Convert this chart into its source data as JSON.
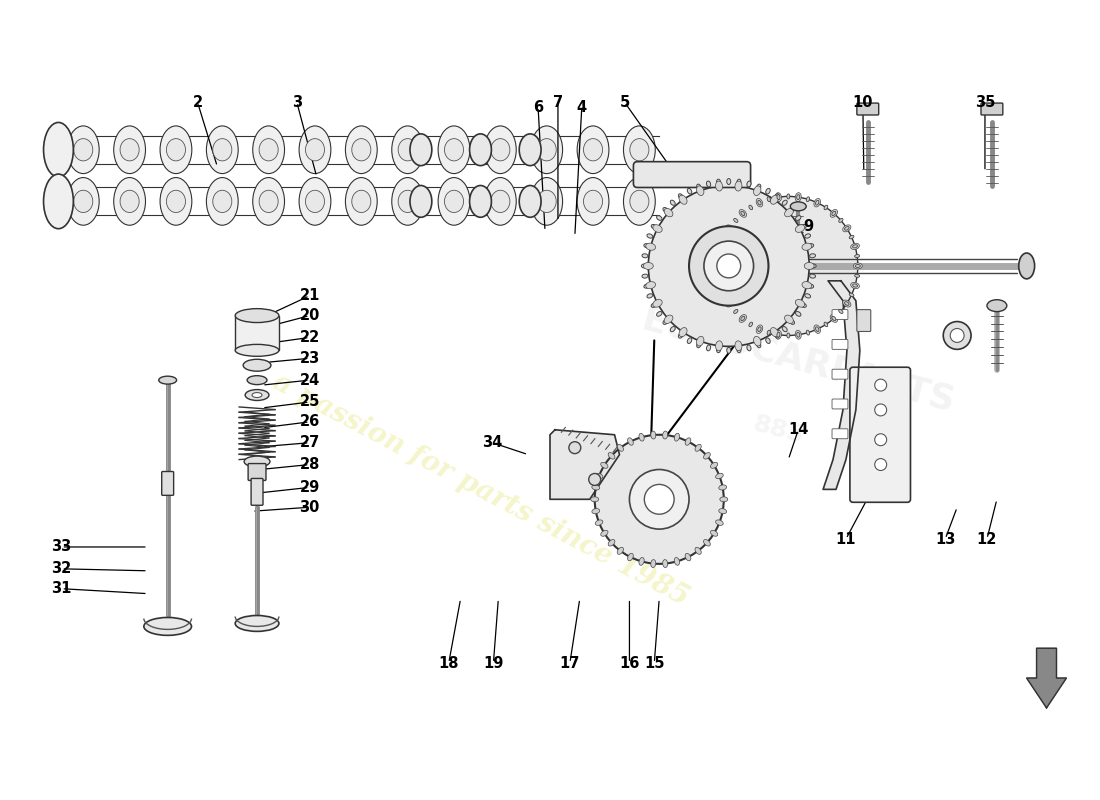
{
  "bg_color": "#ffffff",
  "watermark_text": "a passion for parts since 1985",
  "watermark_color": "#f5f5cc",
  "line_color": "#000000",
  "label_fontsize": 10.5,
  "label_fontweight": "bold",
  "arrow_color": "#000000",
  "label_positions": {
    "2": [
      195,
      715,
      210,
      650
    ],
    "3": [
      295,
      715,
      310,
      645
    ],
    "4": [
      582,
      715,
      570,
      645
    ],
    "5": [
      625,
      715,
      615,
      640
    ],
    "6a": [
      538,
      715,
      540,
      620
    ],
    "6b": [
      425,
      430,
      450,
      470
    ],
    "7": [
      558,
      715,
      555,
      628
    ],
    "9": [
      810,
      530,
      798,
      470
    ],
    "10": [
      870,
      715,
      862,
      680
    ],
    "11": [
      848,
      270,
      840,
      295
    ],
    "12": [
      990,
      270,
      1000,
      300
    ],
    "13": [
      948,
      270,
      960,
      300
    ],
    "14": [
      800,
      380,
      788,
      400
    ],
    "15": [
      658,
      125,
      658,
      175
    ],
    "16": [
      633,
      125,
      638,
      175
    ],
    "17": [
      573,
      125,
      580,
      175
    ],
    "18": [
      450,
      125,
      462,
      185
    ],
    "19": [
      495,
      125,
      500,
      175
    ],
    "20": [
      308,
      520,
      255,
      510
    ],
    "21": [
      308,
      545,
      248,
      530
    ],
    "22": [
      308,
      490,
      255,
      490
    ],
    "23": [
      308,
      468,
      253,
      472
    ],
    "24": [
      308,
      445,
      252,
      452
    ],
    "25": [
      308,
      422,
      252,
      430
    ],
    "26": [
      308,
      400,
      252,
      408
    ],
    "27": [
      308,
      378,
      252,
      384
    ],
    "28": [
      308,
      355,
      252,
      362
    ],
    "29": [
      308,
      332,
      252,
      338
    ],
    "30": [
      308,
      308,
      252,
      310
    ],
    "31": [
      58,
      220,
      135,
      215
    ],
    "32": [
      58,
      245,
      135,
      248
    ],
    "33": [
      58,
      268,
      135,
      265
    ],
    "34": [
      490,
      430,
      525,
      440
    ],
    "35": [
      988,
      715,
      985,
      680
    ]
  }
}
